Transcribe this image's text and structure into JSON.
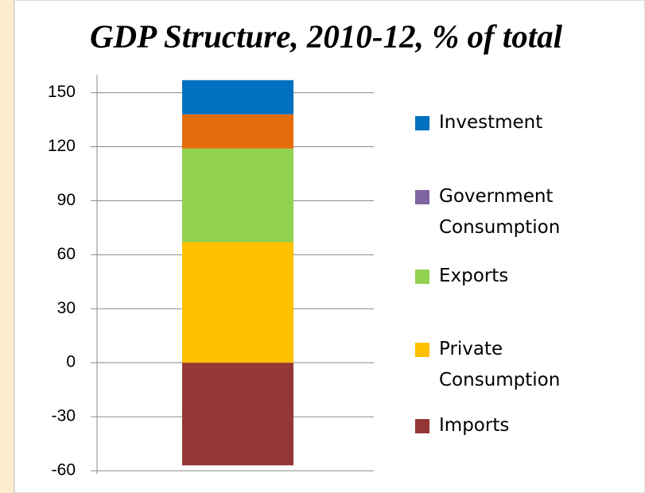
{
  "chart_data": {
    "type": "stacked_bar",
    "title": "GDP Structure, 2010-12, % of total",
    "series": [
      {
        "name": "Imports",
        "color": "#953735",
        "values": [
          -57
        ]
      },
      {
        "name": "Private Consumption",
        "color": "#ffc000",
        "values": [
          67
        ]
      },
      {
        "name": "Exports",
        "color": "#92d050",
        "values": [
          52
        ]
      },
      {
        "name": "Government Consumption",
        "color": "#e46c0a",
        "legend_color": "#8064a2",
        "values": [
          19
        ]
      },
      {
        "name": "Investment",
        "color": "#0070c0",
        "values": [
          19
        ]
      }
    ],
    "ylim": [
      -60,
      160
    ],
    "yticks": [
      -60,
      -30,
      0,
      30,
      60,
      90,
      120,
      150
    ],
    "grid": true,
    "legend": "right"
  }
}
